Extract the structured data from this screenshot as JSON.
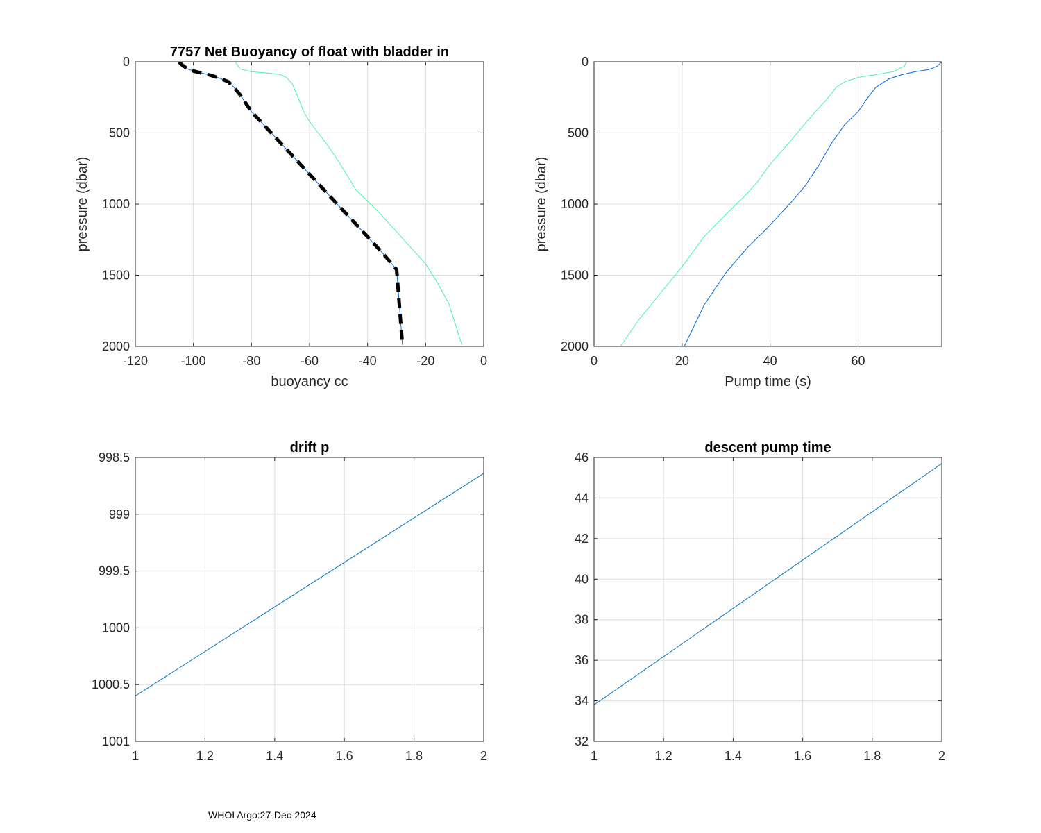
{
  "footer": "WHOI Argo:27-Dec-2024",
  "colors": {
    "blue": "#0066dd",
    "line": "#0072bd",
    "mint": "#44f2a6",
    "dash": "#000000"
  },
  "chart_data": [
    {
      "id": "buoyancy",
      "type": "line",
      "title": "7757 Net Buoyancy of float with bladder in",
      "xlabel": "buoyancy cc",
      "ylabel": "pressure (dbar)",
      "xlim": [
        -120,
        0
      ],
      "ylim": [
        0,
        2000
      ],
      "y_reversed": true,
      "xticks": [
        -120,
        -100,
        -80,
        -60,
        -40,
        -20,
        0
      ],
      "yticks": [
        0,
        500,
        1000,
        1500,
        2000
      ],
      "grid": true,
      "series": [
        {
          "name": "mint",
          "style": "thin",
          "x": [
            -85.5,
            -84,
            -80,
            -74,
            -70,
            -68,
            -66,
            -64,
            -62,
            -60,
            -57,
            -54,
            -50,
            -47,
            -44,
            -40,
            -36,
            -32,
            -28,
            -24,
            -20,
            -16,
            -12,
            -7.5
          ],
          "y": [
            0,
            50,
            70,
            80,
            90,
            110,
            150,
            250,
            350,
            420,
            500,
            580,
            700,
            800,
            900,
            980,
            1060,
            1150,
            1240,
            1330,
            1420,
            1550,
            1700,
            1990
          ]
        },
        {
          "name": "blue",
          "style": "thin",
          "x": [
            -105,
            -104,
            -102,
            -100,
            -97,
            -94,
            -91,
            -88,
            -86,
            -84,
            -82,
            -80,
            -75,
            -70,
            -65,
            -60,
            -55,
            -50,
            -45,
            -40,
            -35,
            -30,
            -28
          ],
          "y": [
            0,
            20,
            50,
            65,
            80,
            95,
            115,
            140,
            180,
            230,
            290,
            350,
            460,
            570,
            680,
            790,
            900,
            1010,
            1120,
            1230,
            1340,
            1460,
            1990
          ]
        },
        {
          "name": "dash",
          "style": "dashed",
          "x": [
            -105,
            -104,
            -102,
            -100,
            -97,
            -94,
            -91,
            -88,
            -86,
            -84,
            -82,
            -80,
            -75,
            -70,
            -65,
            -60,
            -55,
            -50,
            -45,
            -40,
            -35,
            -30,
            -28
          ],
          "y": [
            0,
            20,
            50,
            65,
            80,
            95,
            115,
            140,
            180,
            230,
            290,
            350,
            460,
            570,
            680,
            790,
            900,
            1010,
            1120,
            1230,
            1340,
            1460,
            1990
          ]
        }
      ]
    },
    {
      "id": "pumptime",
      "type": "line",
      "title": "",
      "xlabel": "Pump time (s)",
      "ylabel": "pressure (dbar)",
      "xlim": [
        0,
        79
      ],
      "ylim": [
        0,
        2000
      ],
      "y_reversed": true,
      "xticks": [
        0,
        20,
        40,
        60
      ],
      "yticks": [
        0,
        500,
        1000,
        1500,
        2000
      ],
      "grid": true,
      "series": [
        {
          "name": "mint",
          "style": "thin",
          "x": [
            71,
            70.5,
            68,
            64,
            60,
            57,
            55,
            53,
            50,
            47,
            44,
            40,
            37,
            34,
            30,
            25,
            20,
            15,
            10,
            6
          ],
          "y": [
            0,
            30,
            70,
            90,
            110,
            140,
            180,
            260,
            360,
            470,
            580,
            720,
            850,
            950,
            1070,
            1230,
            1440,
            1630,
            1820,
            2000
          ]
        },
        {
          "name": "blue",
          "style": "thin",
          "x": [
            79,
            78,
            76,
            73,
            70,
            67,
            64,
            62,
            60,
            57,
            54,
            51,
            48,
            45,
            42,
            39,
            35,
            30,
            25,
            20.5
          ],
          "y": [
            0,
            30,
            55,
            70,
            90,
            120,
            180,
            260,
            350,
            440,
            570,
            730,
            870,
            980,
            1080,
            1180,
            1300,
            1480,
            1710,
            2000
          ]
        }
      ]
    },
    {
      "id": "driftp",
      "type": "line",
      "title": "drift p",
      "xlabel": "",
      "ylabel": "",
      "xlim": [
        1,
        2
      ],
      "ylim": [
        998.5,
        1001
      ],
      "y_reversed": true,
      "xticks": [
        1,
        1.2,
        1.4,
        1.6,
        1.8,
        2
      ],
      "yticks": [
        998.5,
        999,
        999.5,
        1000,
        1000.5,
        1001
      ],
      "grid": true,
      "series": [
        {
          "name": "line",
          "style": "thin",
          "x": [
            1,
            2
          ],
          "y": [
            1000.6,
            998.64
          ]
        }
      ]
    },
    {
      "id": "descentpump",
      "type": "line",
      "title": "descent pump time",
      "xlabel": "",
      "ylabel": "",
      "xlim": [
        1,
        2
      ],
      "ylim": [
        32,
        46
      ],
      "y_reversed": false,
      "xticks": [
        1,
        1.2,
        1.4,
        1.6,
        1.8,
        2
      ],
      "yticks": [
        32,
        34,
        36,
        38,
        40,
        42,
        44,
        46
      ],
      "grid": true,
      "series": [
        {
          "name": "line",
          "style": "thin",
          "x": [
            1,
            2
          ],
          "y": [
            33.8,
            45.7
          ]
        }
      ]
    }
  ]
}
